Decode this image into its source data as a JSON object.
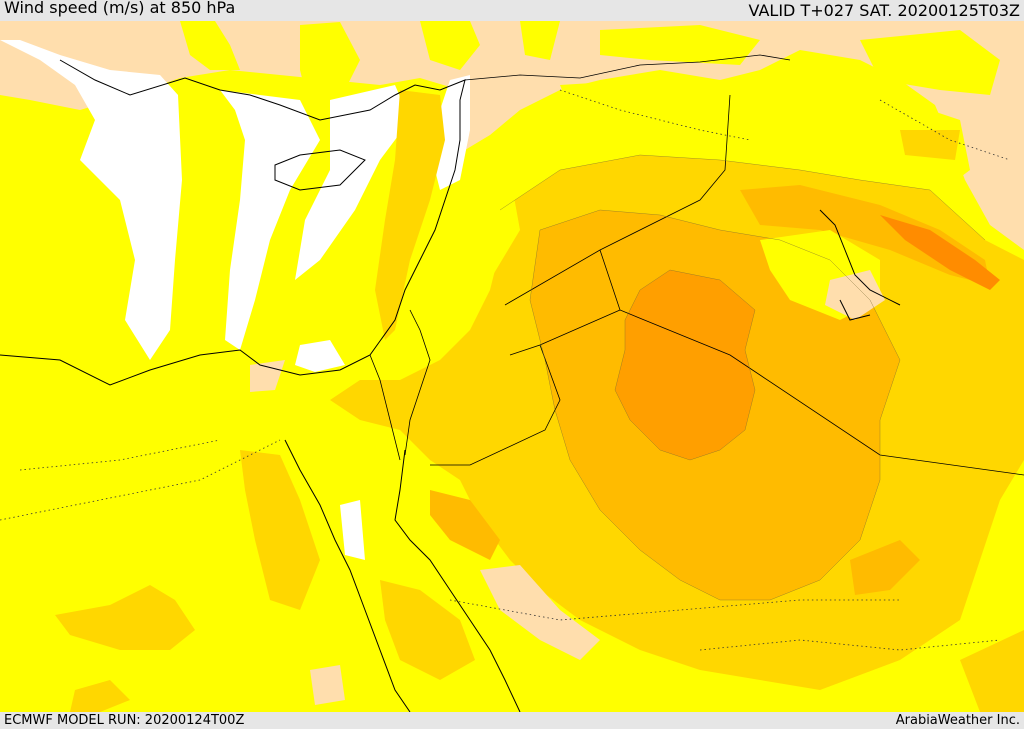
{
  "header": {
    "title": "Wind speed (m/s) at 850 hPa",
    "valid_time": "VALID T+027 SAT. 20200125T03Z"
  },
  "footer": {
    "model_run": "ECMWF MODEL RUN: 20200124T00Z",
    "credit": "ArabiaWeather Inc."
  },
  "map": {
    "colors": {
      "no_data": "#ffffff",
      "land_tan": "#ffdead",
      "yellow": "#ffff00",
      "gold": "#ffd700",
      "amber": "#ffbb00",
      "orange": "#ff9f00",
      "dark_orange": "#ff8c00"
    }
  }
}
